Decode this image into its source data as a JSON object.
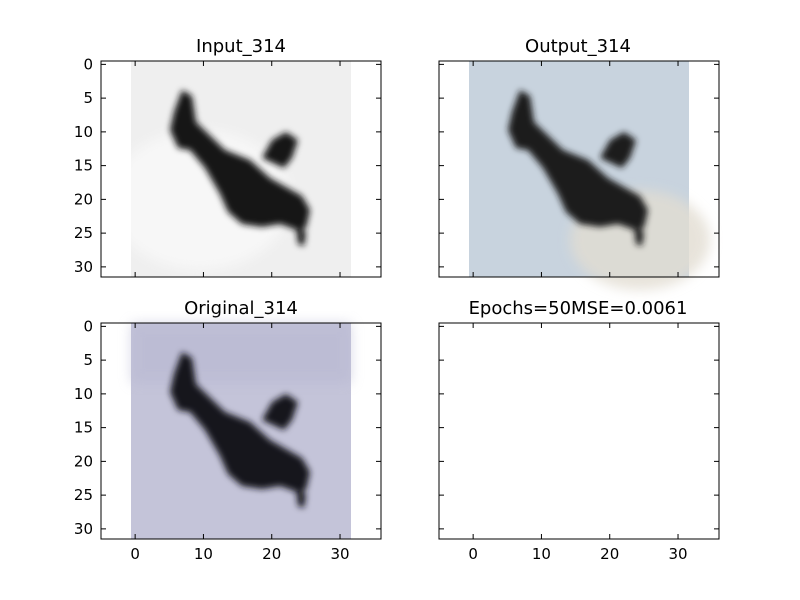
{
  "panels": [
    {
      "id": "input",
      "title": "Input_314",
      "has_image": true,
      "background": "#efefef",
      "bird": "#151515",
      "show_yticks": true,
      "show_xticks": false
    },
    {
      "id": "output",
      "title": "Output_314",
      "has_image": true,
      "background": "#c8d3de",
      "bird": "#1e1c1c",
      "show_yticks": false,
      "show_xticks": false
    },
    {
      "id": "original",
      "title": "Original_314",
      "has_image": true,
      "background": "#c4c4d9",
      "bird": "#16161e",
      "show_yticks": true,
      "show_xticks": true
    },
    {
      "id": "empty",
      "title": "Epochs=50MSE=0.0061",
      "has_image": false,
      "show_yticks": false,
      "show_xticks": true
    }
  ],
  "axes": {
    "x_ticks": [
      0,
      10,
      20,
      30
    ],
    "y_ticks": [
      0,
      5,
      10,
      15,
      20,
      25,
      30
    ],
    "xlim": [
      -5,
      36
    ],
    "ylim": [
      31.5,
      -0.5
    ],
    "image_extent": [
      -0.5,
      31.5
    ]
  },
  "colors": {
    "input_gradient_light": "#f6f6f6",
    "output_gradient_warm": "#e2ddd2",
    "original_gradient_dark": "#b6b6d0"
  }
}
